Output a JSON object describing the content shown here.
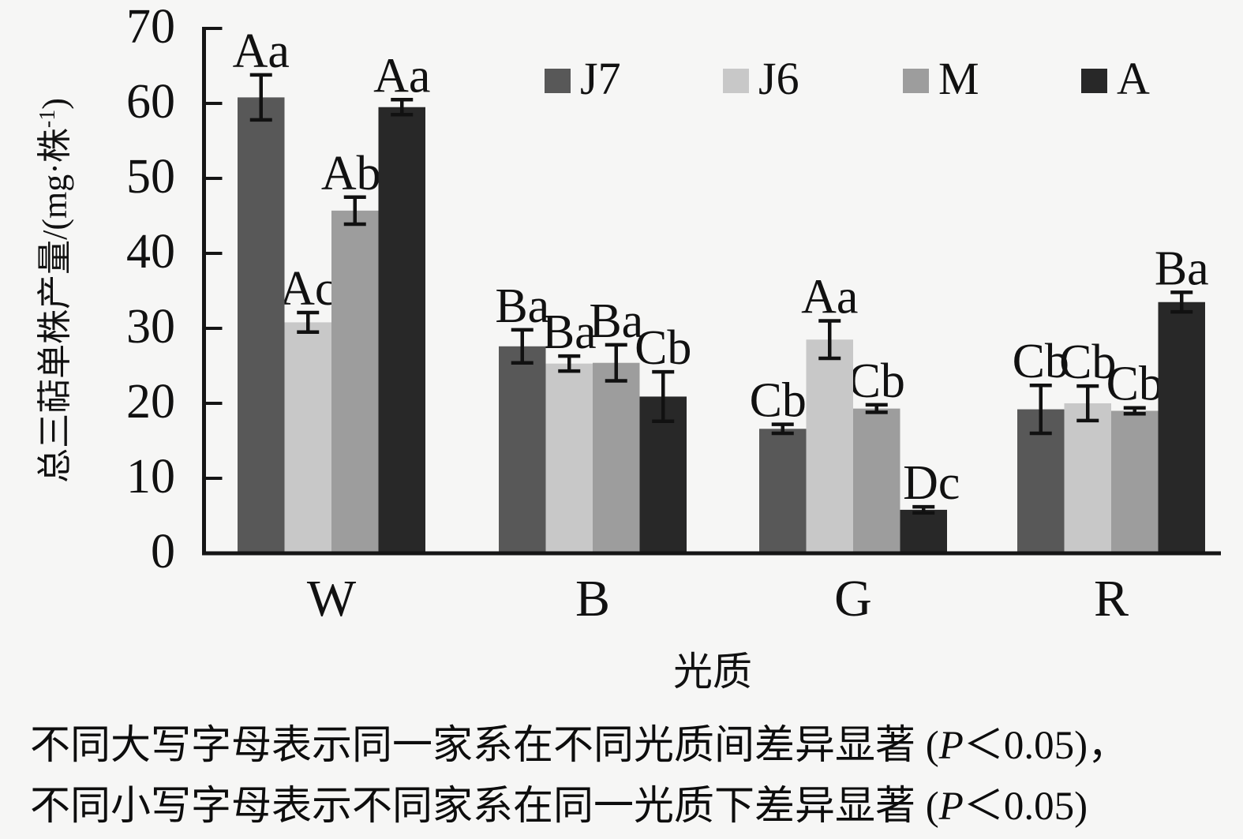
{
  "chart_data": {
    "type": "bar",
    "title": "",
    "categories": [
      "W",
      "B",
      "G",
      "R"
    ],
    "series": [
      {
        "name": "J7",
        "color": "#585858",
        "values": [
          60.8,
          27.6,
          16.6,
          19.2
        ],
        "errors": [
          3.0,
          2.2,
          0.6,
          3.2
        ],
        "sig_labels": [
          "Aa",
          "Ba",
          "Cb",
          "Cb"
        ]
      },
      {
        "name": "J6",
        "color": "#c8c8c8",
        "values": [
          30.8,
          25.3,
          28.5,
          20.0
        ],
        "errors": [
          1.3,
          1.0,
          2.5,
          2.3
        ],
        "sig_labels": [
          "Ac",
          "Ba",
          "Aa",
          "Cb"
        ]
      },
      {
        "name": "M",
        "color": "#9d9d9d",
        "values": [
          45.7,
          25.4,
          19.3,
          19.0
        ],
        "errors": [
          1.8,
          2.4,
          0.5,
          0.4
        ],
        "sig_labels": [
          "Ab",
          "Ba",
          "Cb",
          "Cb"
        ]
      },
      {
        "name": "A",
        "color": "#282828",
        "values": [
          59.5,
          20.9,
          5.8,
          33.5
        ],
        "errors": [
          1.0,
          3.3,
          0.4,
          1.3
        ],
        "sig_labels": [
          "Aa",
          "Cb",
          "Dc",
          "Ba"
        ]
      }
    ],
    "xlabel": "光质",
    "ylabel": "总三萜单株产量/(mg·株⁻¹)",
    "ylabel_parts": {
      "main": "总三萜单株产量/(mg·株",
      "sup": "-1",
      "close": ")"
    },
    "yticks": [
      0,
      10,
      20,
      30,
      40,
      50,
      60,
      70
    ],
    "ylim": [
      0,
      70
    ],
    "grid": false,
    "legend_position": "top",
    "error_bars": true,
    "axis_color": "#151515",
    "text_color": "#111111",
    "background_color": "#f6f6f5"
  },
  "caption": {
    "line1_pre": "不同大写字母表示同一家系在不同光质间差异显著 (",
    "line1_p": "P",
    "line1_post": "＜0.05)，",
    "line2_pre": "不同小写字母表示不同家系在同一光质下差异显著 (",
    "line2_p": "P",
    "line2_post": "＜0.05)"
  }
}
